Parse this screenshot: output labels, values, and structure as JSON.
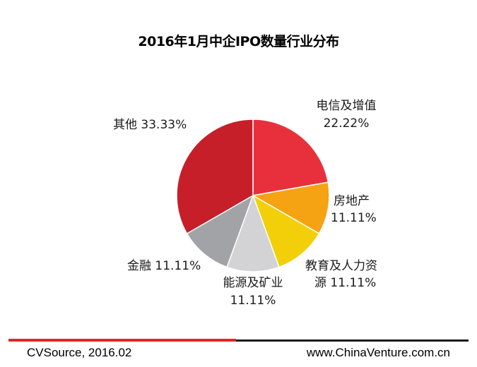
{
  "chart_data": {
    "type": "pie",
    "title": "2016年1月中企IPO数量行业分布",
    "slices": [
      {
        "label": "电信及增值",
        "value_text": "22.22%",
        "value": 22.22,
        "color": "#e8303d"
      },
      {
        "label": "房地产",
        "value_text": "11.11%",
        "value": 11.11,
        "color": "#f5a312"
      },
      {
        "label": "教育及人力资源",
        "value_text": "11.11%",
        "value": 11.11,
        "color": "#f3cf0a"
      },
      {
        "label": "能源及矿业",
        "value_text": "11.11%",
        "value": 11.11,
        "color": "#d3d3d5"
      },
      {
        "label": "金融",
        "value_text": "11.11%",
        "value": 11.11,
        "color": "#a2a3a7"
      },
      {
        "label": "其他",
        "value_text": "33.33%",
        "value": 33.33,
        "color": "#c61f2a"
      }
    ]
  },
  "footer": {
    "source": "CVSource, 2016.02",
    "url": "www.ChinaVenture.com.cn"
  }
}
